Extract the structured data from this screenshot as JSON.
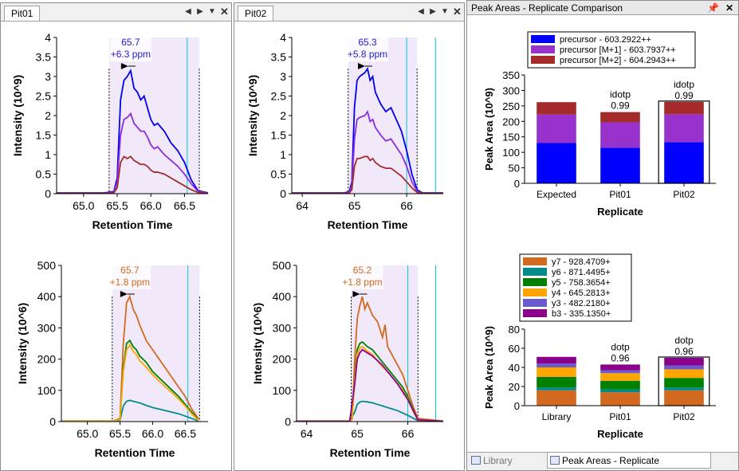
{
  "left_panel": {
    "tab_label": "Pit01",
    "charts": [
      {
        "xlabel": "Retention Time",
        "ylabel": "Intensity (10^9)",
        "x_ticks": [
          "65.0",
          "65.5",
          "66.0",
          "66.5"
        ],
        "y_ticks": [
          "0",
          "0.5",
          "1",
          "1.5",
          "2",
          "2.5",
          "3",
          "3.5",
          "4"
        ],
        "peak_annotation": [
          "65.7",
          "+6.3 ppm"
        ],
        "annotation_color": "#2020d0"
      },
      {
        "xlabel": "Retention Time",
        "ylabel": "Intensity (10^6)",
        "x_ticks": [
          "65.0",
          "65.5",
          "66.0",
          "66.5"
        ],
        "y_ticks": [
          "0",
          "100",
          "200",
          "300",
          "400",
          "500"
        ],
        "peak_annotation": [
          "65.7",
          "+1.8 ppm"
        ],
        "annotation_color": "#d2691e"
      }
    ]
  },
  "middle_panel": {
    "tab_label": "Pit02",
    "charts": [
      {
        "xlabel": "Retention Time",
        "ylabel": "Intensity (10^9)",
        "x_ticks": [
          "64",
          "65",
          "66"
        ],
        "y_ticks": [
          "0",
          "0.5",
          "1",
          "1.5",
          "2",
          "2.5",
          "3",
          "3.5",
          "4"
        ],
        "peak_annotation": [
          "65.3",
          "+5.8 ppm"
        ],
        "annotation_color": "#2020d0"
      },
      {
        "xlabel": "Retention Time",
        "ylabel": "Intensity (10^6)",
        "x_ticks": [
          "64",
          "65",
          "66"
        ],
        "y_ticks": [
          "0",
          "100",
          "200",
          "300",
          "400",
          "500"
        ],
        "peak_annotation": [
          "65.2",
          "+1.8 ppm"
        ],
        "annotation_color": "#d2691e"
      }
    ]
  },
  "right_panel": {
    "title": "Peak Areas - Replicate Comparison",
    "pin_icon": "pin-icon",
    "close_icon": "close-icon",
    "bottom_tabs": [
      "Library Match",
      "Peak Areas - Replicate Comparison"
    ]
  },
  "chart_data": [
    {
      "type": "line",
      "panel": "Pit01 precursor",
      "xlabel": "Retention Time",
      "ylabel": "Intensity (10^9)",
      "xlim": [
        64.6,
        66.85
      ],
      "ylim": [
        0,
        4
      ],
      "integration_boundaries": [
        65.38,
        66.72
      ],
      "id_lines": [
        66.54
      ],
      "series": [
        {
          "name": "precursor - 603.2922++",
          "color": "#0000ee",
          "x": [
            64.6,
            65.3,
            65.45,
            65.5,
            65.55,
            65.6,
            65.65,
            65.7,
            65.75,
            65.8,
            65.85,
            65.9,
            65.95,
            66.0,
            66.05,
            66.1,
            66.2,
            66.3,
            66.4,
            66.5,
            66.6,
            66.7,
            66.85
          ],
          "y": [
            0.02,
            0.02,
            0.05,
            0.4,
            2.4,
            2.9,
            3.0,
            3.15,
            2.7,
            2.6,
            2.4,
            2.5,
            2.2,
            1.9,
            1.75,
            1.8,
            1.6,
            1.3,
            1.1,
            0.8,
            0.35,
            0.08,
            0.02
          ]
        },
        {
          "name": "precursor [M+1] - 603.7937++",
          "color": "#8a2be2",
          "x": [
            64.6,
            65.3,
            65.45,
            65.5,
            65.55,
            65.6,
            65.65,
            65.7,
            65.75,
            65.8,
            65.85,
            65.9,
            65.95,
            66.0,
            66.05,
            66.1,
            66.2,
            66.3,
            66.4,
            66.5,
            66.6,
            66.7,
            66.85
          ],
          "y": [
            0.01,
            0.01,
            0.03,
            0.3,
            1.5,
            1.9,
            1.95,
            2.05,
            1.8,
            1.7,
            1.6,
            1.6,
            1.45,
            1.25,
            1.15,
            1.2,
            1.0,
            0.85,
            0.7,
            0.5,
            0.25,
            0.06,
            0.01
          ]
        },
        {
          "name": "precursor [M+2] - 604.2943++",
          "color": "#a52a2a",
          "x": [
            64.6,
            65.3,
            65.45,
            65.5,
            65.55,
            65.6,
            65.65,
            65.7,
            65.75,
            65.8,
            65.85,
            65.9,
            65.95,
            66.0,
            66.05,
            66.1,
            66.2,
            66.3,
            66.4,
            66.5,
            66.6,
            66.7,
            66.85
          ],
          "y": [
            0.01,
            0.01,
            0.02,
            0.15,
            0.8,
            0.95,
            0.9,
            0.95,
            0.85,
            0.8,
            0.75,
            0.75,
            0.7,
            0.6,
            0.55,
            0.55,
            0.5,
            0.4,
            0.3,
            0.2,
            0.1,
            0.03,
            0.01
          ]
        }
      ]
    },
    {
      "type": "line",
      "panel": "Pit01 fragments",
      "xlabel": "Retention Time",
      "ylabel": "Intensity (10^6)",
      "xlim": [
        64.6,
        66.85
      ],
      "ylim": [
        0,
        500
      ],
      "integration_boundaries": [
        65.38,
        66.72
      ],
      "id_lines": [
        66.54
      ],
      "series": [
        {
          "name": "y7 - 928.4709+",
          "color": "#d2691e",
          "x": [
            64.6,
            65.4,
            65.5,
            65.55,
            65.6,
            65.65,
            65.7,
            65.75,
            65.8,
            65.9,
            66.0,
            66.1,
            66.2,
            66.3,
            66.4,
            66.5,
            66.6,
            66.7
          ],
          "y": [
            2,
            2,
            10,
            250,
            380,
            400,
            360,
            340,
            310,
            260,
            230,
            200,
            170,
            140,
            110,
            80,
            40,
            10
          ]
        },
        {
          "name": "y6 - 871.4495+",
          "color": "#008b8b",
          "x": [
            64.6,
            65.4,
            65.5,
            65.55,
            65.6,
            65.65,
            65.7,
            65.8,
            65.9,
            66.0,
            66.2,
            66.4,
            66.6,
            66.7
          ],
          "y": [
            1,
            1,
            5,
            50,
            65,
            68,
            65,
            60,
            52,
            45,
            35,
            25,
            10,
            2
          ]
        },
        {
          "name": "y5 - 758.3654+",
          "color": "#008000",
          "x": [
            64.6,
            65.4,
            65.5,
            65.55,
            65.6,
            65.65,
            65.7,
            65.75,
            65.8,
            65.9,
            66.0,
            66.1,
            66.2,
            66.3,
            66.4,
            66.5,
            66.6,
            66.7
          ],
          "y": [
            1,
            1,
            8,
            170,
            250,
            260,
            240,
            230,
            210,
            190,
            160,
            140,
            120,
            100,
            80,
            55,
            30,
            5
          ]
        },
        {
          "name": "y4 - 645.2813+",
          "color": "#ffa500",
          "x": [
            64.6,
            65.4,
            65.5,
            65.55,
            65.6,
            65.65,
            65.7,
            65.75,
            65.8,
            65.9,
            66.0,
            66.1,
            66.2,
            66.3,
            66.4,
            66.5,
            66.6,
            66.7
          ],
          "y": [
            1,
            1,
            7,
            160,
            230,
            245,
            225,
            215,
            195,
            175,
            150,
            130,
            110,
            92,
            72,
            50,
            25,
            4
          ]
        }
      ]
    },
    {
      "type": "line",
      "panel": "Pit02 precursor",
      "xlabel": "Retention Time",
      "ylabel": "Intensity (10^9)",
      "xlim": [
        63.8,
        66.7
      ],
      "ylim": [
        0,
        4
      ],
      "integration_boundaries": [
        64.88,
        66.2
      ],
      "id_lines": [
        66.0,
        66.55
      ],
      "series": [
        {
          "name": "precursor - 603.2922++",
          "color": "#0000ee",
          "x": [
            63.8,
            64.8,
            64.9,
            64.95,
            65.0,
            65.05,
            65.1,
            65.2,
            65.25,
            65.3,
            65.35,
            65.4,
            65.5,
            65.6,
            65.7,
            65.8,
            65.9,
            66.0,
            66.1,
            66.2,
            66.3,
            66.7
          ],
          "y": [
            0.02,
            0.02,
            0.05,
            0.3,
            2.2,
            2.9,
            3.0,
            3.1,
            3.2,
            2.9,
            3.0,
            2.6,
            2.3,
            2.1,
            2.2,
            1.9,
            1.6,
            1.1,
            0.5,
            0.1,
            0.02,
            0.02
          ]
        },
        {
          "name": "precursor [M+1] - 603.7937++",
          "color": "#8a2be2",
          "x": [
            63.8,
            64.8,
            64.9,
            64.95,
            65.0,
            65.05,
            65.1,
            65.2,
            65.25,
            65.3,
            65.35,
            65.4,
            65.5,
            65.6,
            65.7,
            65.8,
            65.9,
            66.0,
            66.1,
            66.2,
            66.3,
            66.7
          ],
          "y": [
            0.01,
            0.01,
            0.03,
            0.2,
            1.4,
            1.9,
            1.95,
            2.0,
            2.1,
            1.85,
            1.9,
            1.7,
            1.5,
            1.35,
            1.4,
            1.2,
            1.0,
            0.7,
            0.3,
            0.06,
            0.01,
            0.01
          ]
        },
        {
          "name": "precursor [M+2] - 604.2943++",
          "color": "#a52a2a",
          "x": [
            63.8,
            64.8,
            64.9,
            64.95,
            65.0,
            65.05,
            65.1,
            65.2,
            65.25,
            65.3,
            65.35,
            65.4,
            65.5,
            65.6,
            65.7,
            65.8,
            65.9,
            66.0,
            66.1,
            66.2,
            66.3,
            66.7
          ],
          "y": [
            0.01,
            0.01,
            0.02,
            0.1,
            0.7,
            0.9,
            0.9,
            0.95,
            0.95,
            0.85,
            0.9,
            0.8,
            0.7,
            0.65,
            0.65,
            0.55,
            0.45,
            0.3,
            0.15,
            0.03,
            0.01,
            0.01
          ]
        }
      ]
    },
    {
      "type": "line",
      "panel": "Pit02 fragments",
      "xlabel": "Retention Time",
      "ylabel": "Intensity (10^6)",
      "xlim": [
        63.8,
        66.7
      ],
      "ylim": [
        0,
        500
      ],
      "integration_boundaries": [
        64.88,
        66.2
      ],
      "id_lines": [
        66.0,
        66.55
      ],
      "series": [
        {
          "name": "y7 - 928.4709+",
          "color": "#d2691e",
          "x": [
            63.8,
            64.85,
            64.9,
            64.95,
            65.0,
            65.05,
            65.1,
            65.15,
            65.2,
            65.3,
            65.4,
            65.5,
            65.55,
            65.6,
            65.7,
            65.8,
            65.9,
            66.0,
            66.1,
            66.2,
            66.7
          ],
          "y": [
            2,
            2,
            10,
            200,
            330,
            370,
            400,
            360,
            380,
            340,
            320,
            270,
            310,
            240,
            210,
            180,
            150,
            100,
            50,
            10,
            2
          ]
        },
        {
          "name": "y6 - 871.4495+",
          "color": "#008b8b",
          "x": [
            63.8,
            64.85,
            64.95,
            65.0,
            65.05,
            65.1,
            65.2,
            65.3,
            65.4,
            65.5,
            65.6,
            65.8,
            66.0,
            66.2,
            66.7
          ],
          "y": [
            1,
            1,
            30,
            55,
            62,
            65,
            63,
            60,
            55,
            50,
            45,
            35,
            20,
            3,
            1
          ]
        },
        {
          "name": "y5 - 758.3654+",
          "color": "#008000",
          "x": [
            63.8,
            64.85,
            64.9,
            64.95,
            65.0,
            65.05,
            65.1,
            65.2,
            65.3,
            65.4,
            65.5,
            65.6,
            65.7,
            65.8,
            65.9,
            66.0,
            66.1,
            66.2,
            66.7
          ],
          "y": [
            1,
            1,
            8,
            150,
            230,
            250,
            255,
            240,
            230,
            210,
            190,
            170,
            150,
            130,
            110,
            80,
            40,
            5,
            1
          ]
        },
        {
          "name": "y4 - 645.2813+",
          "color": "#ffa500",
          "x": [
            63.8,
            64.85,
            64.9,
            64.95,
            65.0,
            65.05,
            65.1,
            65.2,
            65.3,
            65.4,
            65.5,
            65.6,
            65.7,
            65.8,
            65.9,
            66.0,
            66.1,
            66.2,
            66.7
          ],
          "y": [
            1,
            1,
            7,
            140,
            215,
            235,
            240,
            225,
            215,
            195,
            175,
            160,
            140,
            120,
            100,
            72,
            35,
            4,
            1
          ]
        },
        {
          "name": "b3 - 335.1350+",
          "color": "#8b008b",
          "x": [
            63.8,
            64.85,
            64.95,
            65.0,
            65.05,
            65.1,
            65.2,
            65.3,
            65.4,
            65.5,
            65.6,
            65.8,
            66.0,
            66.2,
            66.7
          ],
          "y": [
            1,
            1,
            120,
            200,
            220,
            230,
            220,
            210,
            195,
            180,
            160,
            120,
            70,
            5,
            1
          ]
        }
      ]
    },
    {
      "type": "bar",
      "stacked": true,
      "panel": "Peak Areas precursor",
      "ylabel": "Peak Area (10^9)",
      "xlabel": "Replicate",
      "categories": [
        "Expected",
        "Pit01",
        "Pit02"
      ],
      "ylim": [
        0,
        350
      ],
      "y_ticks": [
        0,
        50,
        100,
        150,
        200,
        250,
        300,
        350
      ],
      "selected": "Pit02",
      "bar_labels": [
        [],
        [
          "idotp",
          "0.99"
        ],
        [
          "idotp",
          "0.99"
        ]
      ],
      "legend": "top",
      "series": [
        {
          "name": "precursor - 603.2922++",
          "color": "#0000ff",
          "values": [
            130,
            115,
            133
          ]
        },
        {
          "name": "precursor [M+1] - 603.7937++",
          "color": "#9932cc",
          "values": [
            92,
            82,
            90
          ]
        },
        {
          "name": "precursor [M+2] - 604.2943++",
          "color": "#a52a2a",
          "values": [
            40,
            33,
            40
          ]
        }
      ]
    },
    {
      "type": "bar",
      "stacked": true,
      "panel": "Peak Areas fragments",
      "ylabel": "Peak Area (10^9)",
      "xlabel": "Replicate",
      "categories": [
        "Library",
        "Pit01",
        "Pit02"
      ],
      "ylim": [
        0,
        80
      ],
      "y_ticks": [
        0,
        20,
        40,
        60,
        80
      ],
      "selected": "Pit02",
      "bar_labels": [
        [],
        [
          "dotp",
          "0.96"
        ],
        [
          "dotp",
          "0.96"
        ]
      ],
      "legend": "top",
      "series": [
        {
          "name": "y7 - 928.4709+",
          "color": "#d2691e",
          "values": [
            16,
            14,
            16
          ]
        },
        {
          "name": "y6 - 871.4495+",
          "color": "#008b8b",
          "values": [
            3,
            3,
            3
          ]
        },
        {
          "name": "y5 - 758.3654+",
          "color": "#008000",
          "values": [
            11,
            9,
            10
          ]
        },
        {
          "name": "y4 - 645.2813+",
          "color": "#ffa500",
          "values": [
            10,
            8,
            9
          ]
        },
        {
          "name": "y3 - 482.2180+",
          "color": "#6a5acd",
          "values": [
            4,
            3,
            4
          ]
        },
        {
          "name": "b3 - 335.1350+",
          "color": "#8b008b",
          "values": [
            7,
            6,
            8
          ]
        }
      ]
    }
  ]
}
